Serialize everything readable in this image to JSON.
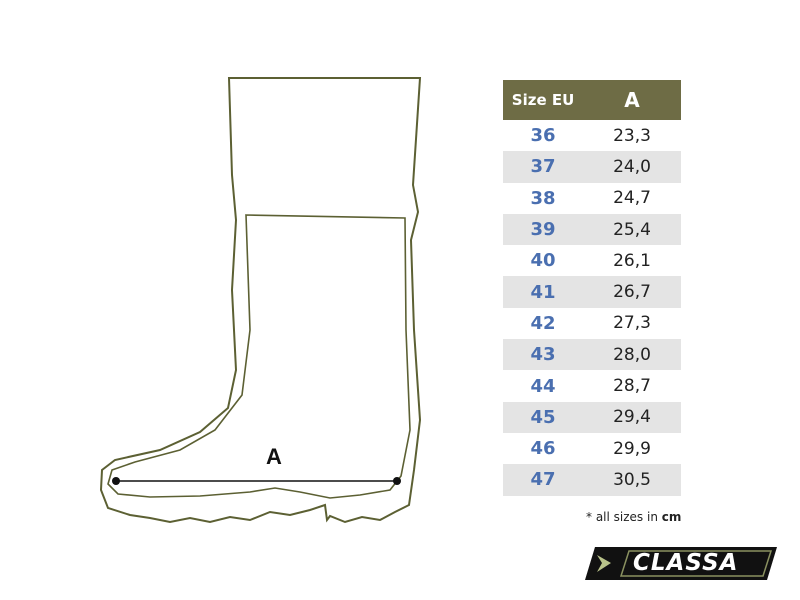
{
  "diagram": {
    "dimension_label": "A",
    "outline_color": "#5c6033"
  },
  "table": {
    "header_color": "#6e6c45",
    "size_color": "#4a6fb0",
    "headers": [
      "Size EU",
      "A"
    ],
    "rows": [
      {
        "size": "36",
        "a": "23,3"
      },
      {
        "size": "37",
        "a": "24,0"
      },
      {
        "size": "38",
        "a": "24,7"
      },
      {
        "size": "39",
        "a": "25,4"
      },
      {
        "size": "40",
        "a": "26,1"
      },
      {
        "size": "41",
        "a": "26,7"
      },
      {
        "size": "42",
        "a": "27,3"
      },
      {
        "size": "43",
        "a": "28,0"
      },
      {
        "size": "44",
        "a": "28,7"
      },
      {
        "size": "45",
        "a": "29,4"
      },
      {
        "size": "46",
        "a": "29,9"
      },
      {
        "size": "47",
        "a": "30,5"
      }
    ]
  },
  "note": {
    "prefix": "* all sizes in ",
    "unit": "cm"
  },
  "logo": {
    "text": "CLASSA"
  }
}
